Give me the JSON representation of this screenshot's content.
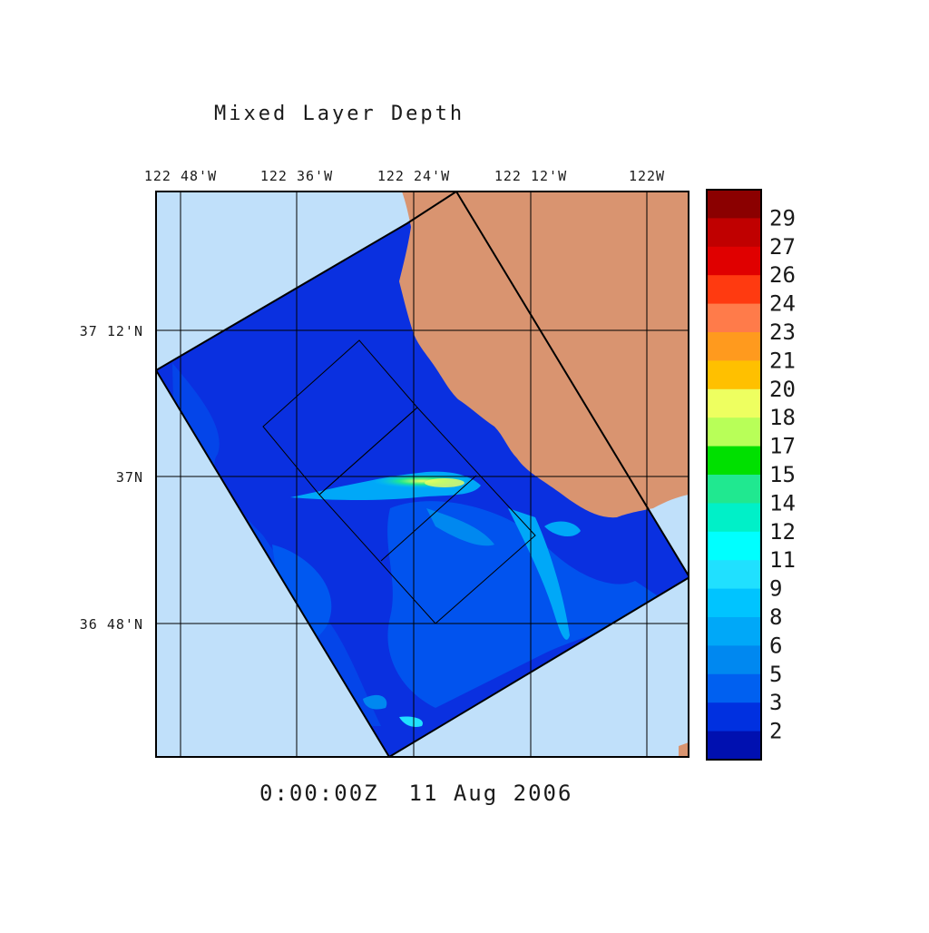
{
  "title": "Mixed Layer Depth",
  "timestamp": "0:00:00Z  11 Aug 2006",
  "lon_labels": [
    "122 48'W",
    "122 36'W",
    "122 24'W",
    "122 12'W",
    "122W"
  ],
  "lat_labels": [
    "37 12'N",
    "37N",
    "36 48'N"
  ],
  "colorbar": {
    "labels": [
      "29",
      "27",
      "26",
      "24",
      "23",
      "21",
      "20",
      "18",
      "17",
      "15",
      "14",
      "12",
      "11",
      "9",
      "8",
      "6",
      "5",
      "3",
      "2"
    ],
    "colors_top_to_bottom": [
      "#8b0000",
      "#c00000",
      "#e00000",
      "#ff3a10",
      "#ff7b4a",
      "#ff9a1e",
      "#ffc000",
      "#eeff60",
      "#b8ff58",
      "#00e000",
      "#20e890",
      "#00f0c8",
      "#00ffff",
      "#20e0ff",
      "#00c4ff",
      "#00a8f8",
      "#0088f0",
      "#0060f0",
      "#0030e0",
      "#0010b0"
    ]
  },
  "colors": {
    "ocean": "#c0e0fa",
    "land": "#d99470",
    "mixed_layer_base": "#0a30e0",
    "mixed_layer_shallow": "#0058f0"
  }
}
